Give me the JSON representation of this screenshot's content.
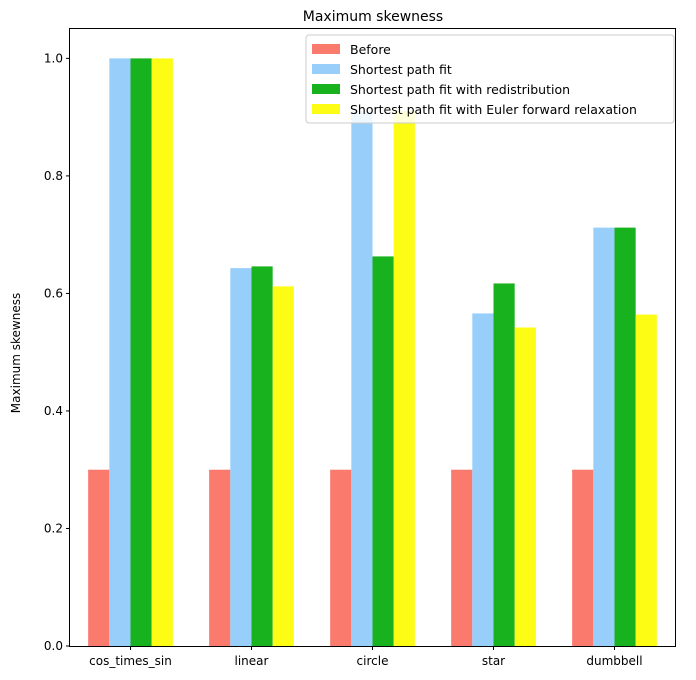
{
  "chart_data": {
    "type": "bar",
    "title": "Maximum skewness",
    "xlabel": "",
    "ylabel": "Maximum skewness",
    "ylim": [
      0,
      1.05
    ],
    "yticks": [
      "0.0",
      "0.2",
      "0.4",
      "0.6",
      "0.8",
      "1.0"
    ],
    "grid": false,
    "legend_position": "top-right",
    "categories": [
      "cos_times_sin",
      "linear",
      "circle",
      "star",
      "dumbbell"
    ],
    "series": [
      {
        "name": "Before",
        "color": "#fa7b6e",
        "values": [
          0.3,
          0.3,
          0.3,
          0.3,
          0.3
        ]
      },
      {
        "name": "Shortest path fit",
        "color": "#97cffa",
        "values": [
          1.0,
          0.643,
          0.91,
          0.566,
          0.712
        ]
      },
      {
        "name": "Shortest path fit with redistribution",
        "color": "#18b21f",
        "values": [
          1.0,
          0.646,
          0.663,
          0.617,
          0.712
        ]
      },
      {
        "name": "Shortest path fit with Euler forward relaxation",
        "color": "#fdfc14",
        "values": [
          1.0,
          0.612,
          0.91,
          0.542,
          0.564
        ]
      }
    ]
  }
}
